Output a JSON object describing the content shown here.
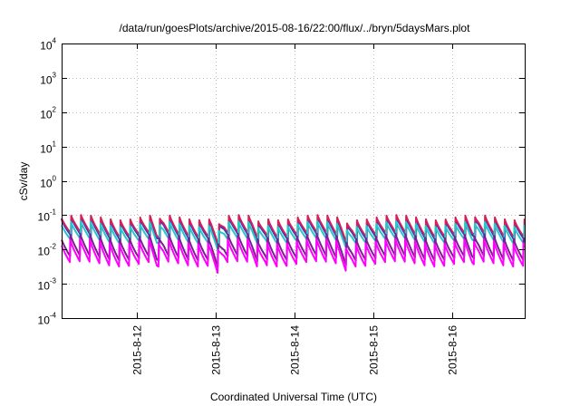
{
  "chart_data": {
    "type": "line",
    "title": "/data/run/goesPlots/archive/2015-08-16/22:00/flux/../bryn/5daysMars.plot",
    "xlabel": "Coordinated Universal Time (UTC)",
    "ylabel": "cSv/day",
    "yscale": "log",
    "ylim": [
      0.0001,
      10000
    ],
    "xlim": [
      "2015-08-11T01:00",
      "2015-08-16T22:00"
    ],
    "grid": true,
    "y_ticks": [
      {
        "base": "10",
        "exp": "-4",
        "value": 0.0001
      },
      {
        "base": "10",
        "exp": "-3",
        "value": 0.001
      },
      {
        "base": "10",
        "exp": "-2",
        "value": 0.01
      },
      {
        "base": "10",
        "exp": "-1",
        "value": 0.1
      },
      {
        "base": "10",
        "exp": "0",
        "value": 1
      },
      {
        "base": "10",
        "exp": "1",
        "value": 10
      },
      {
        "base": "10",
        "exp": "2",
        "value": 100
      },
      {
        "base": "10",
        "exp": "3",
        "value": 1000
      },
      {
        "base": "10",
        "exp": "4",
        "value": 10000
      }
    ],
    "x_ticks": [
      {
        "label": "2015-8-12",
        "value": "2015-08-12T00:00"
      },
      {
        "label": "2015-8-13",
        "value": "2015-08-13T00:00"
      },
      {
        "label": "2015-8-14",
        "value": "2015-08-14T00:00"
      },
      {
        "label": "2015-8-15",
        "value": "2015-08-15T00:00"
      },
      {
        "label": "2015-8-16",
        "value": "2015-08-16T00:00"
      }
    ],
    "sawtooth_period_hours": 3,
    "series": [
      {
        "color": "#1f3fd1",
        "peak": 0.09,
        "trough": 0.025
      },
      {
        "color": "#d61f5a",
        "peak": 0.105,
        "trough": 0.03
      },
      {
        "color": "#29c7c4",
        "peak": 0.07,
        "trough": 0.02
      },
      {
        "color": "#7a1f90",
        "peak": 0.03,
        "trough": 0.0065
      },
      {
        "color": "#ff00ff",
        "peak": 0.022,
        "trough": 0.0045
      }
    ],
    "dips": [
      {
        "at": "2015-08-12T06:00",
        "factor": 0.6
      },
      {
        "at": "2015-08-13T00:30",
        "factor": 0.55
      },
      {
        "at": "2015-08-13T13:00",
        "factor": 0.75
      },
      {
        "at": "2015-08-14T15:30",
        "factor": 0.7
      },
      {
        "at": "2015-08-16T06:00",
        "factor": 0.75
      }
    ]
  }
}
